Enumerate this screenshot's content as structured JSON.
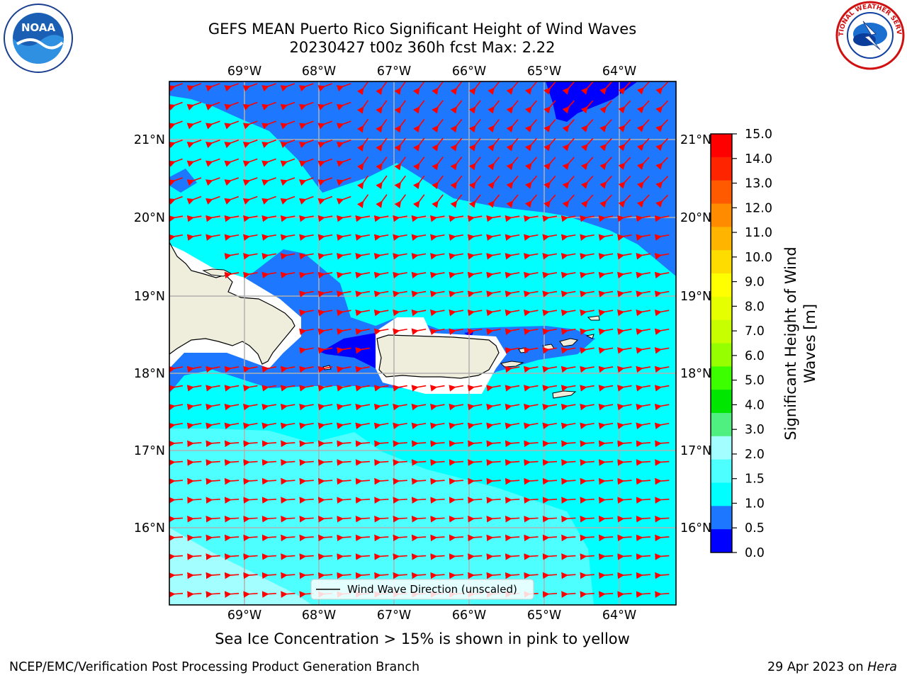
{
  "header": {
    "title_line1": "GEFS MEAN Puerto Rico Significant Height of Wind Waves",
    "title_line2": "20230427 t00z 360h fcst   Max: 2.22"
  },
  "logos": {
    "left": {
      "name": "noaa-logo",
      "text": "NOAA"
    },
    "right": {
      "name": "nws-logo",
      "text": "NATIONAL WEATHER SERVICE"
    }
  },
  "map": {
    "lon_labels": [
      "69°W",
      "68°W",
      "67°W",
      "66°W",
      "65°W",
      "64°W"
    ],
    "lat_labels": [
      "21°N",
      "20°N",
      "19°N",
      "18°N",
      "17°N",
      "16°N"
    ],
    "legend_label": "Wind Wave Direction (unscaled)",
    "colors": {
      "land": "#efeddc",
      "level_0_0_5": "#0000ff",
      "level_0_5_1_0": "#1e78ff",
      "level_1_0_1_5": "#00ffff",
      "level_1_5_2_0": "#4dffff",
      "level_2_0_3_0": "#a3ffff",
      "arrow": "#ff0000",
      "grid": "#b0b0b0"
    }
  },
  "colorbar": {
    "label_line1": "Significant Height of Wind",
    "label_line2": "Waves [m]",
    "ticks": [
      "15.0",
      "14.0",
      "13.0",
      "12.0",
      "11.0",
      "10.0",
      "9.0",
      "8.0",
      "7.0",
      "6.0",
      "5.0",
      "4.0",
      "3.0",
      "2.0",
      "1.5",
      "1.0",
      "0.5",
      "0.0"
    ],
    "colors": [
      "#ff0000",
      "#ff2400",
      "#ff5a00",
      "#ff8c00",
      "#ffb400",
      "#ffdc00",
      "#ffff00",
      "#e6ff00",
      "#c8ff00",
      "#96ff00",
      "#3cff00",
      "#00e600",
      "#50f080",
      "#a3ffff",
      "#4dffff",
      "#00ffff",
      "#1e78ff",
      "#0000ff"
    ]
  },
  "bottom_note": "Sea Ice Concentration > 15% is shown in pink to yellow",
  "footer": {
    "left": "NCEP/EMC/Verification Post Processing Product Generation Branch",
    "right_date": "29 Apr 2023 on ",
    "right_host": "Hera"
  }
}
